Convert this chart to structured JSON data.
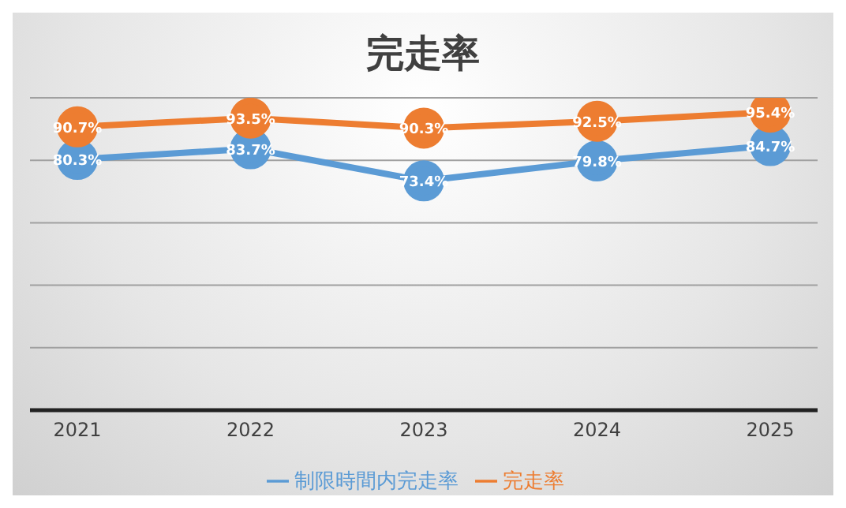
{
  "chart_data": {
    "type": "line",
    "title": "完走率",
    "categories": [
      "2021",
      "2022",
      "2023",
      "2024",
      "2025"
    ],
    "series": [
      {
        "name": "制限時間内完走率",
        "color": "#5b9bd5",
        "values": [
          80.3,
          83.7,
          73.4,
          79.8,
          84.7
        ],
        "value_labels": [
          "80.3%",
          "83.7%",
          "73.4%",
          "79.8%",
          "84.7%"
        ]
      },
      {
        "name": "完走率",
        "color": "#ed7d31",
        "values": [
          90.7,
          93.5,
          90.3,
          92.5,
          95.4
        ],
        "value_labels": [
          "90.7%",
          "93.5%",
          "90.3%",
          "92.5%",
          "95.4%"
        ]
      }
    ],
    "ylim": [
      0,
      100
    ],
    "yticks": [
      {
        "value": 0,
        "label": null
      },
      {
        "value": 20,
        "label": null
      },
      {
        "value": 40,
        "label": null
      },
      {
        "value": 60,
        "label": null
      },
      {
        "value": 80,
        "label": null
      },
      {
        "value": 100,
        "label": null
      }
    ],
    "tick_labels": "x",
    "grid": "y",
    "legend": "bottom",
    "marker": "circle",
    "line_style": "solid"
  }
}
